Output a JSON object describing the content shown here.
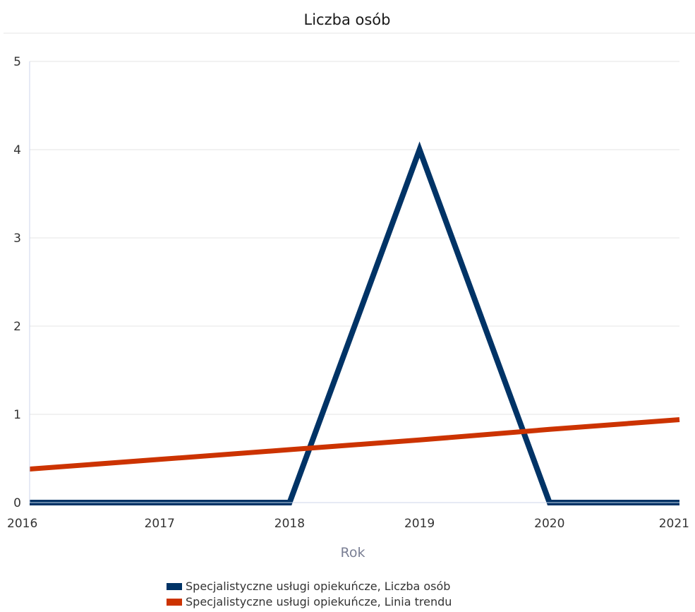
{
  "chart_data": {
    "type": "line",
    "title": "Liczba osób",
    "xlabel": "Rok",
    "ylabel": "",
    "x": [
      2016,
      2017,
      2018,
      2019,
      2020,
      2021
    ],
    "xlim": [
      2016,
      2021
    ],
    "ylim": [
      0,
      5
    ],
    "yticks": [
      0,
      1,
      2,
      3,
      4,
      5
    ],
    "grid": true,
    "legend_position": "bottom",
    "series": [
      {
        "name": "Specjalistyczne usługi opiekuńcze, Liczba osób",
        "color": "#003366",
        "values": [
          0,
          0,
          0,
          4,
          0,
          0
        ]
      },
      {
        "name": "Specjalistyczne usługi opiekuńcze, Linia trendu",
        "color": "#cc3300",
        "values": [
          0.38,
          0.49,
          0.6,
          0.71,
          0.83,
          0.94
        ]
      }
    ]
  }
}
